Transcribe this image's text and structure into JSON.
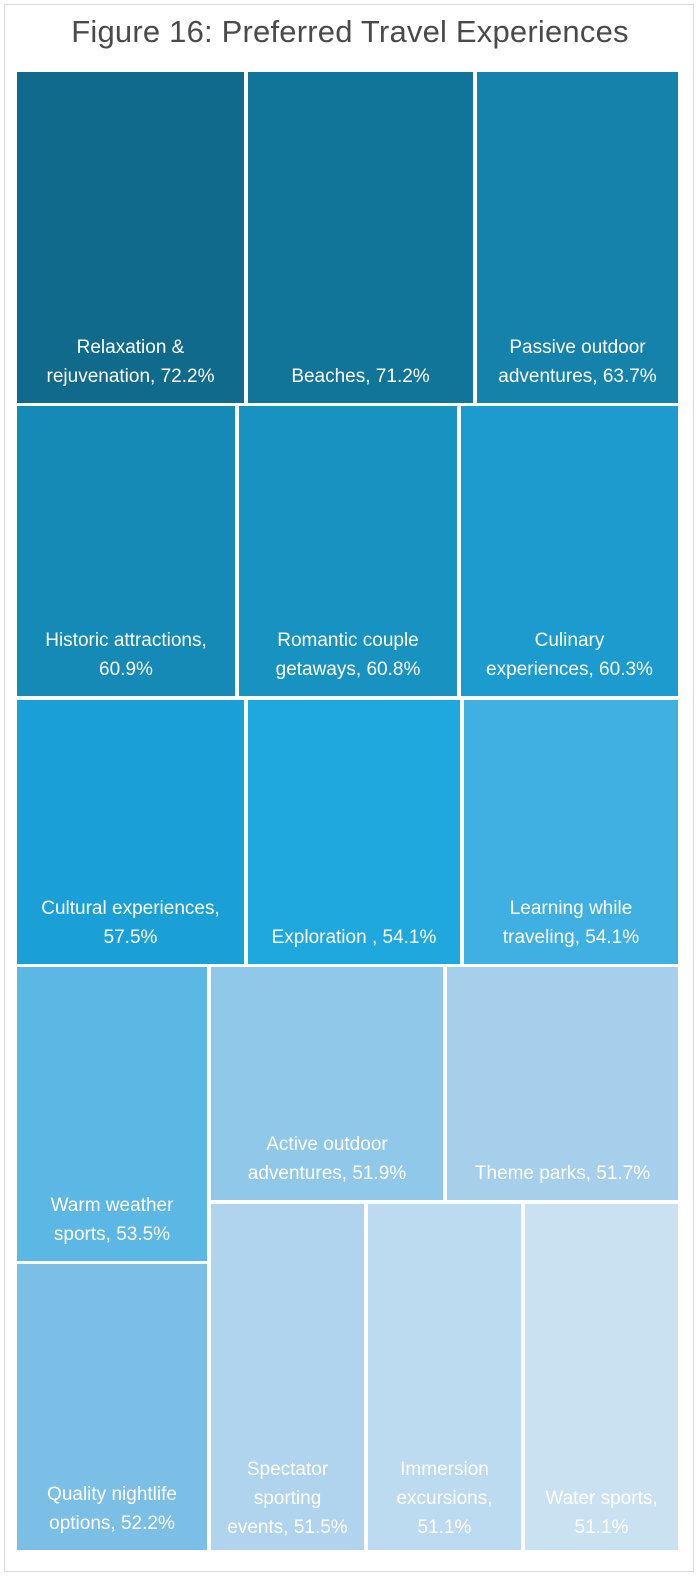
{
  "title": "Figure 16: Preferred Travel Experiences",
  "chart_data": {
    "type": "treemap",
    "title": "Figure 16: Preferred Travel Experiences",
    "unit": "%",
    "items": [
      {
        "label": "Relaxation & rejuvenation, 72.2%",
        "category": "Relaxation & rejuvenation",
        "value": 72.2,
        "color": "#0f6a8c"
      },
      {
        "label": "Beaches, 71.2%",
        "category": "Beaches",
        "value": 71.2,
        "color": "#11759a"
      },
      {
        "label": "Passive outdoor adventures, 63.7%",
        "category": "Passive outdoor adventures",
        "value": 63.7,
        "color": "#1582ab"
      },
      {
        "label": "Historic attractions, 60.9%",
        "category": "Historic attractions",
        "value": 60.9,
        "color": "#168ab6"
      },
      {
        "label": "Romantic couple getaways, 60.8%",
        "category": "Romantic couple getaways",
        "value": 60.8,
        "color": "#1892c1"
      },
      {
        "label": "Culinary experiences, 60.3%",
        "category": "Culinary experiences",
        "value": 60.3,
        "color": "#1b9bce"
      },
      {
        "label": "Cultural experiences, 57.5%",
        "category": "Cultural experiences",
        "value": 57.5,
        "color": "#1aa0d6"
      },
      {
        "label": "Exploration , 54.1%",
        "category": "Exploration",
        "value": 54.1,
        "color": "#1fa8de"
      },
      {
        "label": "Learning while traveling, 54.1%",
        "category": "Learning while traveling",
        "value": 54.1,
        "color": "#40b0e2"
      },
      {
        "label": "Warm weather sports, 53.5%",
        "category": "Warm weather sports",
        "value": 53.5,
        "color": "#5bb7e4"
      },
      {
        "label": "Quality nightlife options, 52.2%",
        "category": "Quality nightlife options",
        "value": 52.2,
        "color": "#7bbfe6"
      },
      {
        "label": "Active outdoor adventures, 51.9%",
        "category": "Active outdoor adventures",
        "value": 51.9,
        "color": "#90c8ea"
      },
      {
        "label": "Theme parks, 51.7%",
        "category": "Theme parks",
        "value": 51.7,
        "color": "#a6cfec"
      },
      {
        "label": "Spectator sporting events, 51.5%",
        "category": "Spectator sporting events",
        "value": 51.5,
        "color": "#b0d4ee"
      },
      {
        "label": "Immersion excursions, 51.1%",
        "category": "Immersion excursions",
        "value": 51.1,
        "color": "#bcdaf0"
      },
      {
        "label": "Water sports, 51.1%",
        "category": "Water sports",
        "value": 51.1,
        "color": "#cae1f2"
      }
    ]
  }
}
